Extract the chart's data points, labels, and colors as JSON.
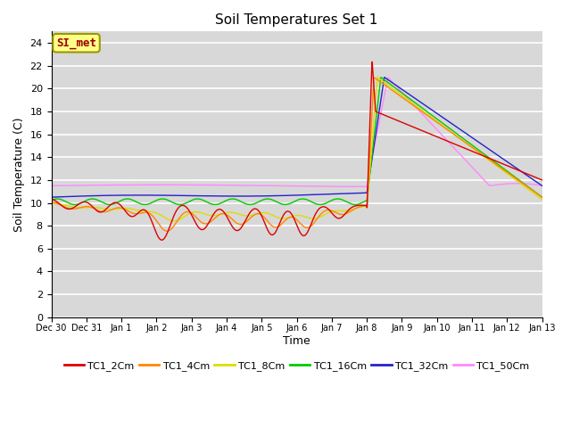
{
  "title": "Soil Temperatures Set 1",
  "xlabel": "Time",
  "ylabel": "Soil Temperature (C)",
  "ylim": [
    0,
    25
  ],
  "yticks": [
    0,
    2,
    4,
    6,
    8,
    10,
    12,
    14,
    16,
    18,
    20,
    22,
    24
  ],
  "background_color": "#d8d8d8",
  "series_colors": {
    "TC1_2Cm": "#dd0000",
    "TC1_4Cm": "#ff8800",
    "TC1_8Cm": "#dddd00",
    "TC1_16Cm": "#00cc00",
    "TC1_32Cm": "#2222cc",
    "TC1_50Cm": "#ff88ff"
  },
  "annotation_text": "SI_met",
  "annotation_color": "#990000",
  "annotation_bg": "#ffff88",
  "annotation_border": "#999900",
  "tick_labels": [
    "Dec 30",
    "Dec 31",
    "Jan 1",
    "Jan 2",
    "Jan 3",
    "Jan 4",
    "Jan 5",
    "Jan 6",
    "Jan 7",
    "Jan 8",
    "Jan 9",
    "Jan 10",
    "Jan 11",
    "Jan 12",
    "Jan 13"
  ]
}
